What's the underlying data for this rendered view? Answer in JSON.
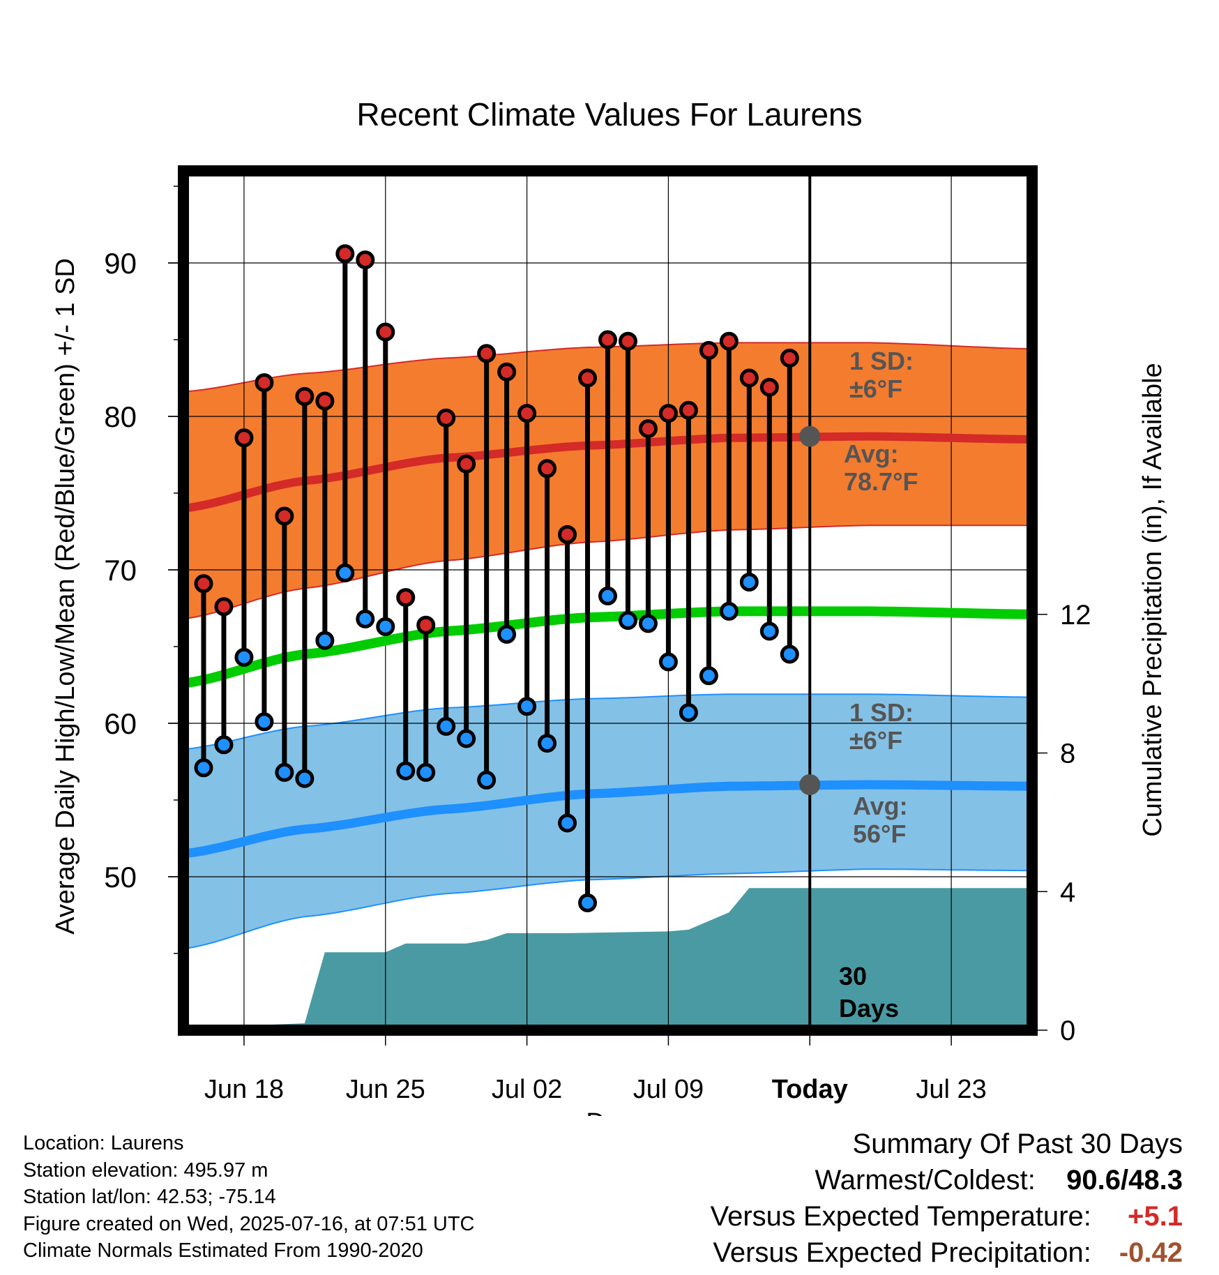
{
  "chart_data": {
    "type": "line",
    "title": "Recent Climate Values For Laurens",
    "xlabel": "Day",
    "ylabel_left": "Average Daily High/Low/Mean (Red/Blue/Green) +/- 1 SD",
    "ylabel_right": "Cumulative Precipitation (in), If Available",
    "x_ticks": [
      "Jun 18",
      "Jun 25",
      "Jul 02",
      "Jul 09",
      "Today",
      "Jul 23"
    ],
    "y_ticks_left": [
      "50",
      "60",
      "70",
      "80",
      "90"
    ],
    "y_ticks_right": [
      "0",
      "4",
      "8",
      "12"
    ],
    "ylim_left": [
      40,
      96
    ],
    "ylim_right": [
      0,
      24.8
    ],
    "x_dates": [
      "Jun 15",
      "Jul 27"
    ],
    "today": "Jul 16",
    "grid": true,
    "colors": {
      "high": "#d42a28",
      "low": "#1e90ff",
      "mean": "#00cc00",
      "high_band": "#f47c2f",
      "low_band": "#84c1e6",
      "precip": "#4a9aa3",
      "annotation": "#555555"
    },
    "days": [
      "Jun 16",
      "Jun 17",
      "Jun 18",
      "Jun 19",
      "Jun 20",
      "Jun 21",
      "Jun 22",
      "Jun 23",
      "Jun 24",
      "Jun 25",
      "Jun 26",
      "Jun 27",
      "Jun 28",
      "Jun 29",
      "Jun 30",
      "Jul 01",
      "Jul 02",
      "Jul 03",
      "Jul 04",
      "Jul 05",
      "Jul 06",
      "Jul 07",
      "Jul 08",
      "Jul 09",
      "Jul 10",
      "Jul 11",
      "Jul 12",
      "Jul 13",
      "Jul 14",
      "Jul 15"
    ],
    "series": [
      {
        "name": "High",
        "values": [
          69.1,
          67.6,
          78.6,
          82.2,
          73.5,
          81.3,
          81.0,
          90.6,
          90.2,
          85.5,
          68.2,
          66.4,
          79.9,
          76.9,
          84.1,
          82.9,
          80.2,
          76.6,
          72.3,
          82.5,
          85.0,
          84.9,
          79.2,
          80.2,
          80.4,
          84.3,
          84.9,
          82.5,
          81.9,
          83.8
        ]
      },
      {
        "name": "Low",
        "values": [
          57.1,
          58.6,
          64.3,
          60.1,
          56.8,
          56.4,
          65.4,
          69.8,
          66.8,
          66.3,
          56.9,
          56.8,
          59.8,
          59.0,
          56.3,
          65.8,
          61.1,
          58.7,
          53.5,
          48.3,
          68.3,
          66.7,
          66.5,
          64.0,
          60.7,
          63.1,
          67.3,
          69.2,
          66.0,
          64.5
        ]
      }
    ],
    "normals": {
      "dates": [
        "Jun 15",
        "Jun 21",
        "Jun 28",
        "Jul 05",
        "Jul 12",
        "Jul 19",
        "Jul 27"
      ],
      "high_avg": [
        74.0,
        75.8,
        77.3,
        78.1,
        78.6,
        78.7,
        78.5
      ],
      "high_upper": [
        81.6,
        82.8,
        83.8,
        84.5,
        84.8,
        84.8,
        84.4
      ],
      "high_lower": [
        66.8,
        68.8,
        70.6,
        71.8,
        72.6,
        72.9,
        72.9
      ],
      "mean": [
        62.6,
        64.5,
        66.0,
        66.9,
        67.3,
        67.3,
        67.1
      ],
      "low_avg": [
        51.5,
        53.1,
        54.4,
        55.4,
        55.9,
        56.0,
        55.9
      ],
      "low_upper": [
        58.3,
        59.8,
        61.0,
        61.6,
        61.9,
        61.9,
        61.7
      ],
      "low_lower": [
        45.3,
        47.4,
        48.9,
        49.8,
        50.2,
        50.5,
        50.4
      ]
    },
    "precip_cumulative": {
      "dates": [
        "Jun 15",
        "Jun 18",
        "Jun 19",
        "Jun 21",
        "Jun 22",
        "Jun 24",
        "Jun 25",
        "Jun 26",
        "Jun 29",
        "Jun 30",
        "Jul 01",
        "Jul 04",
        "Jul 09",
        "Jul 10",
        "Jul 12",
        "Jul 13",
        "Jul 27"
      ],
      "values": [
        0,
        0,
        0.15,
        0.2,
        2.25,
        2.25,
        2.25,
        2.5,
        2.5,
        2.6,
        2.8,
        2.8,
        2.85,
        2.9,
        3.4,
        4.1,
        4.1
      ]
    },
    "annotations": {
      "high_sd": [
        "1 SD:",
        "±6°F"
      ],
      "high_avg": [
        "Avg:",
        "78.7°F"
      ],
      "low_sd": [
        "1 SD:",
        "±6°F"
      ],
      "low_avg": [
        "Avg:",
        "56°F"
      ],
      "window": [
        "30",
        "Days"
      ]
    }
  },
  "footer_left": [
    "Location: Laurens",
    "Station elevation: 495.97 m",
    "Station lat/lon: 42.53; -75.14",
    "Figure created on Wed, 2025-07-16, at 07:51 UTC",
    "Climate Normals Estimated From 1990-2020"
  ],
  "summary": {
    "title": "Summary Of Past 30 Days",
    "warm_cold_label": "Warmest/Coldest:",
    "warm_cold_value": "90.6/48.3",
    "temp_label": "Versus Expected Temperature:",
    "temp_value": "+5.1",
    "temp_color": "#d42a28",
    "precip_label": "Versus Expected Precipitation:",
    "precip_value": "-0.42",
    "precip_color": "#a0522d"
  }
}
